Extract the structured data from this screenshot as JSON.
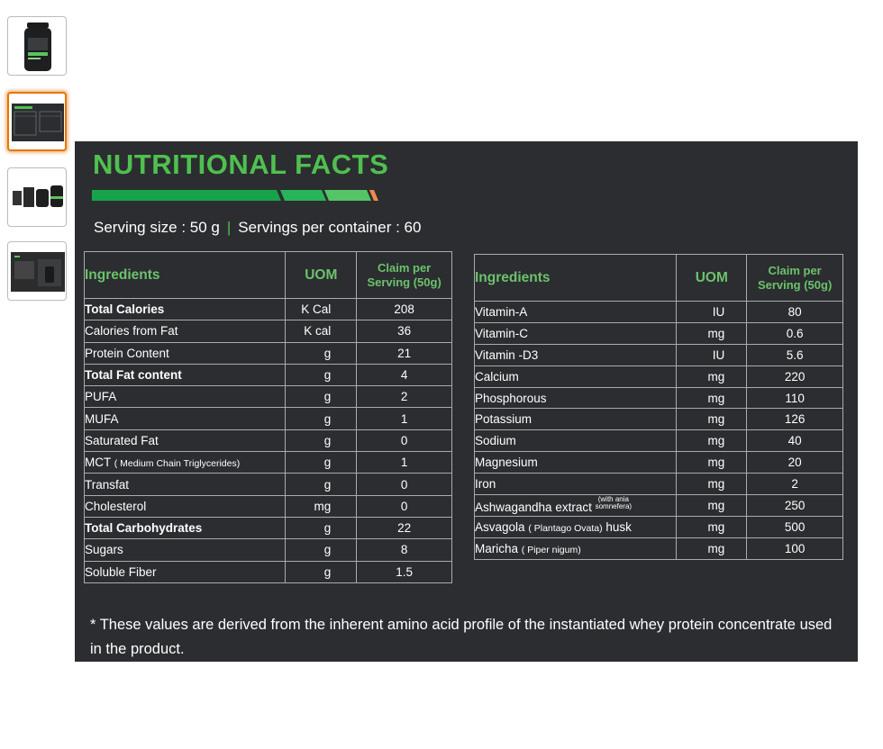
{
  "thumbnails": [
    {
      "name": "product-jar-thumbnail",
      "active": false
    },
    {
      "name": "nutrition-table-thumbnail",
      "active": true
    },
    {
      "name": "product-range-thumbnail",
      "active": false
    },
    {
      "name": "product-lifestyle-thumbnail",
      "active": false
    }
  ],
  "panel": {
    "title": "NUTRITIONAL FACTS",
    "serving_size": "Serving size : 50 g",
    "separator": "|",
    "servings_per_container": "Servings per container : 60",
    "colors": {
      "accent_green": "#4fc04f",
      "header_green": "#6cc26c",
      "background": "#2b2d30",
      "stripe_orange": "#f08b4a"
    }
  },
  "left_table": {
    "headers": {
      "ingredients": "Ingredients",
      "uom": "UOM",
      "claim_1": "Claim per",
      "claim_2": "Serving (50g)"
    },
    "rows": [
      {
        "ingredient": "Total Calories",
        "uom": "K Cal",
        "value": "208",
        "bold": true
      },
      {
        "ingredient": "Calories from Fat",
        "uom": "K cal",
        "value": "36"
      },
      {
        "ingredient": "Protein Content",
        "uom": "g",
        "value": "21"
      },
      {
        "ingredient": "Total Fat content",
        "uom": "g",
        "value": "4",
        "bold": true
      },
      {
        "ingredient": "PUFA",
        "uom": "g",
        "value": "2"
      },
      {
        "ingredient": "MUFA",
        "uom": "g",
        "value": "1"
      },
      {
        "ingredient": "Saturated Fat",
        "uom": "g",
        "value": "0"
      },
      {
        "ingredient": "MCT",
        "note": "( Medium Chain Triglycerides)",
        "uom": "g",
        "value": "1"
      },
      {
        "ingredient": "Transfat",
        "uom": "g",
        "value": "0"
      },
      {
        "ingredient": "Cholesterol",
        "uom": "mg",
        "value": "0"
      },
      {
        "ingredient": "Total Carbohydrates",
        "uom": "g",
        "value": "22",
        "bold": true
      },
      {
        "ingredient": "Sugars",
        "uom": "g",
        "value": "8"
      },
      {
        "ingredient": "Soluble Fiber",
        "uom": "g",
        "value": "1.5"
      }
    ]
  },
  "right_table": {
    "headers": {
      "ingredients": "Ingredients",
      "uom": "UOM",
      "claim_1": "Claim per",
      "claim_2": "Serving (50g)"
    },
    "rows": [
      {
        "ingredient": "Vitamin-A",
        "uom": "IU",
        "value": "80"
      },
      {
        "ingredient": "Vitamin-C",
        "uom": "mg",
        "value": "0.6"
      },
      {
        "ingredient": "Vitamin -D3",
        "uom": "IU",
        "value": "5.6"
      },
      {
        "ingredient": "Calcium",
        "uom": "mg",
        "value": "220"
      },
      {
        "ingredient": "Phosphorous",
        "uom": "mg",
        "value": "110"
      },
      {
        "ingredient": "Potassium",
        "uom": "mg",
        "value": "126"
      },
      {
        "ingredient": "Sodium",
        "uom": "mg",
        "value": "40"
      },
      {
        "ingredient": "Magnesium",
        "uom": "mg",
        "value": "20"
      },
      {
        "ingredient": "Iron",
        "uom": "mg",
        "value": "2"
      },
      {
        "ingredient": "Ashwagandha extract",
        "sup_1": "(with ania",
        "sup_2": "somnefera)",
        "uom": "mg",
        "value": "250"
      },
      {
        "ingredient": "Asvagola",
        "note": "( Plantago Ovata)",
        "suffix": "husk",
        "uom": "mg",
        "value": "500"
      },
      {
        "ingredient": "Maricha",
        "note": "( Piper nigum)",
        "uom": "mg",
        "value": "100"
      }
    ]
  },
  "footnote": "* These values are derived from the inherent amino acid profile of the instantiated whey protein concentrate used in the product."
}
